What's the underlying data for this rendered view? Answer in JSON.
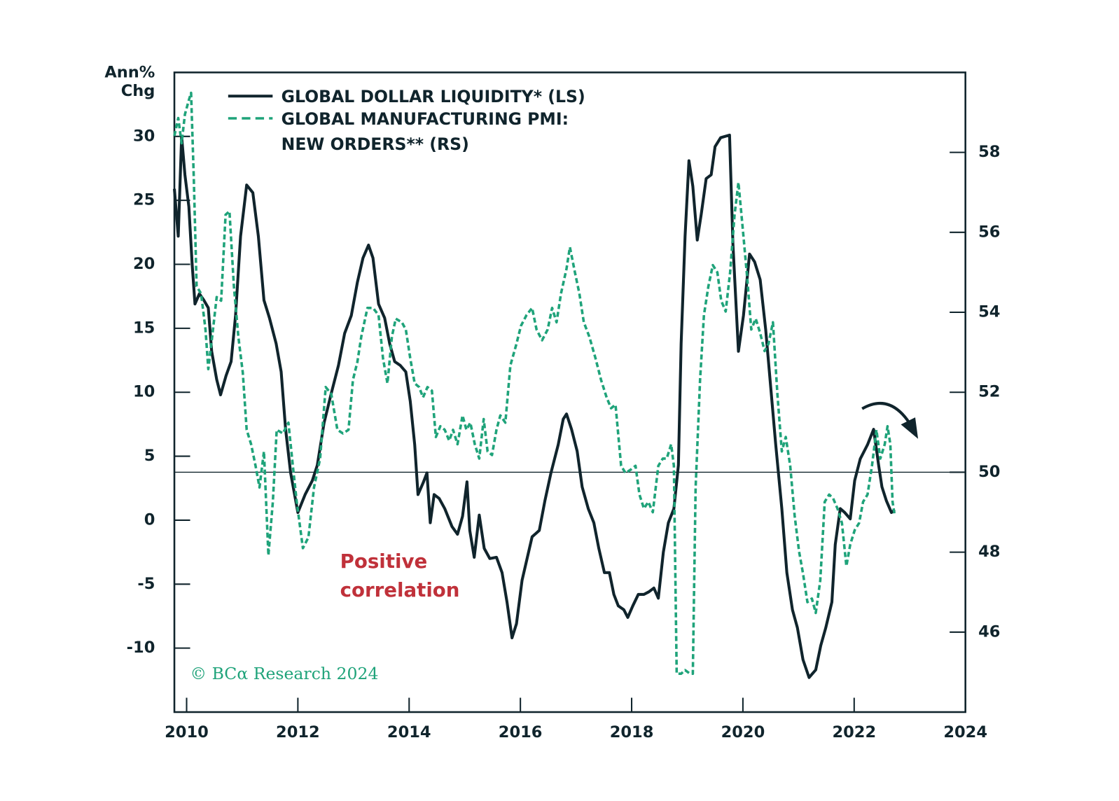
{
  "chart_data": {
    "type": "line",
    "y_label": "Ann%\nChg",
    "annotations": [
      "Positive\ncorrelation",
      "© BCα Research 2024"
    ],
    "xlim": [
      2009.78,
      2024
    ],
    "xticks": [
      2010,
      2012,
      2014,
      2016,
      2018,
      2020,
      2022,
      2024
    ],
    "ylim": [
      -15,
      35
    ],
    "yticks": [
      -10,
      -5,
      0,
      5,
      10,
      15,
      20,
      25,
      30
    ],
    "y2lim": [
      44,
      60
    ],
    "y2ticks": [
      46,
      48,
      50,
      52,
      54,
      56,
      58
    ],
    "hline_y2": 50,
    "legend": "upper left",
    "series": [
      {
        "name": "GLOBAL DOLLAR LIQUIDITY* (LS)",
        "color": "#10242c",
        "axis": "y",
        "line_style": "solid",
        "x": [
          2009.78,
          2009.85,
          2009.91,
          2009.97,
          2010.04,
          2010.1,
          2010.15,
          2010.23,
          2010.31,
          2010.39,
          2010.45,
          2010.54,
          2010.61,
          2010.71,
          2010.8,
          2010.88,
          2010.97,
          2011.08,
          2011.19,
          2011.29,
          2011.39,
          2011.49,
          2011.61,
          2011.7,
          2011.78,
          2011.87,
          2012.0,
          2012.13,
          2012.26,
          2012.35,
          2012.47,
          2012.6,
          2012.73,
          2012.84,
          2012.96,
          2013.07,
          2013.17,
          2013.27,
          2013.35,
          2013.45,
          2013.56,
          2013.65,
          2013.74,
          2013.84,
          2013.94,
          2014.02,
          2014.1,
          2014.16,
          2014.25,
          2014.32,
          2014.38,
          2014.45,
          2014.54,
          2014.64,
          2014.77,
          2014.87,
          2014.96,
          2015.04,
          2015.09,
          2015.17,
          2015.26,
          2015.35,
          2015.45,
          2015.57,
          2015.67,
          2015.76,
          2015.85,
          2015.93,
          2016.03,
          2016.12,
          2016.21,
          2016.34,
          2016.44,
          2016.55,
          2016.68,
          2016.77,
          2016.83,
          2016.92,
          2017.02,
          2017.11,
          2017.22,
          2017.32,
          2017.41,
          2017.51,
          2017.6,
          2017.68,
          2017.76,
          2017.86,
          2017.93,
          2018.02,
          2018.12,
          2018.22,
          2018.31,
          2018.4,
          2018.48,
          2018.57,
          2018.66,
          2018.76,
          2018.84,
          2018.89,
          2018.96,
          2019.03,
          2019.1,
          2019.18,
          2019.25,
          2019.34,
          2019.43,
          2019.5,
          2019.6,
          2019.76,
          2019.82,
          2019.92,
          2020.01,
          2020.12,
          2020.21,
          2020.31,
          2020.41,
          2020.5,
          2020.59,
          2020.7,
          2020.79,
          2020.89,
          2020.98,
          2021.08,
          2021.19,
          2021.31,
          2021.4,
          2021.49,
          2021.6,
          2021.66,
          2021.75,
          2021.83,
          2021.93,
          2022.01,
          2022.11,
          2022.24,
          2022.35,
          2022.44,
          2022.5,
          2022.58,
          2022.67,
          2022.73
        ],
        "values": [
          25.9,
          22.2,
          30,
          27,
          24.5,
          20,
          16.9,
          17.7,
          17.2,
          16.6,
          13.2,
          11,
          9.8,
          11.3,
          12.4,
          16,
          22.2,
          26.2,
          25.6,
          22.2,
          17.2,
          15.8,
          13.8,
          11.6,
          7.1,
          3.7,
          0.6,
          2,
          3.1,
          4.3,
          7.6,
          9.9,
          12.1,
          14.6,
          16,
          18.6,
          20.5,
          21.5,
          20.5,
          16.9,
          15.8,
          13.8,
          12.4,
          12.1,
          11.6,
          9.3,
          5.9,
          2,
          2.9,
          3.7,
          -0.2,
          2,
          1.7,
          0.9,
          -0.5,
          -1.1,
          0.3,
          3,
          -0.8,
          -2.9,
          0.4,
          -2.2,
          -3,
          -2.9,
          -4.1,
          -6.4,
          -9.2,
          -8.1,
          -4.7,
          -3,
          -1.3,
          -0.8,
          1.5,
          3.7,
          5.9,
          7.9,
          8.3,
          7.1,
          5.4,
          2.6,
          0.9,
          -0.2,
          -2.2,
          -4.1,
          -4.1,
          -5.8,
          -6.7,
          -7,
          -7.6,
          -6.7,
          -5.8,
          -5.8,
          -5.6,
          -5.3,
          -6.1,
          -2.5,
          -0.2,
          0.9,
          4.3,
          13.8,
          22.2,
          28.1,
          26.1,
          21.9,
          23.9,
          26.7,
          27,
          29.2,
          29.9,
          30.1,
          21.6,
          13.2,
          16,
          20.8,
          20.2,
          18.8,
          14.9,
          10.4,
          5.9,
          0.9,
          -4.1,
          -7,
          -8.4,
          -10.9,
          -12.3,
          -11.7,
          -9.8,
          -8.4,
          -6.4,
          -1.9,
          0.9,
          0.6,
          0.1,
          3.1,
          4.8,
          5.9,
          7.1,
          4.3,
          2.6,
          1.5,
          0.6,
          0.8
        ]
      },
      {
        "name": "GLOBAL MANUFACTURING PMI:\nNEW ORDERS** (RS)",
        "color": "#1fa37a",
        "axis": "y2",
        "line_style": "dashed",
        "x": [
          2009.78,
          2009.85,
          2009.91,
          2009.97,
          2010.04,
          2010.08,
          2010.13,
          2010.18,
          2010.26,
          2010.34,
          2010.39,
          2010.46,
          2010.54,
          2010.62,
          2010.7,
          2010.77,
          2010.85,
          2010.93,
          2011.01,
          2011.08,
          2011.16,
          2011.24,
          2011.31,
          2011.39,
          2011.47,
          2011.55,
          2011.62,
          2011.73,
          2011.83,
          2011.91,
          2011.98,
          2012.09,
          2012.19,
          2012.29,
          2012.4,
          2012.5,
          2012.6,
          2012.71,
          2012.81,
          2012.91,
          2012.99,
          2013.07,
          2013.14,
          2013.25,
          2013.35,
          2013.45,
          2013.53,
          2013.61,
          2013.69,
          2013.76,
          2013.87,
          2013.94,
          2014.02,
          2014.1,
          2014.18,
          2014.25,
          2014.33,
          2014.41,
          2014.48,
          2014.56,
          2014.64,
          2014.72,
          2014.79,
          2014.87,
          2014.96,
          2015.03,
          2015.1,
          2015.18,
          2015.26,
          2015.34,
          2015.41,
          2015.49,
          2015.57,
          2015.64,
          2015.73,
          2015.82,
          2015.93,
          2016.01,
          2016.11,
          2016.21,
          2016.29,
          2016.39,
          2016.49,
          2016.57,
          2016.65,
          2016.73,
          2016.83,
          2016.89,
          2016.98,
          2017.06,
          2017.14,
          2017.24,
          2017.35,
          2017.45,
          2017.55,
          2017.63,
          2017.71,
          2017.81,
          2017.89,
          2017.99,
          2018.07,
          2018.14,
          2018.22,
          2018.3,
          2018.38,
          2018.48,
          2018.56,
          2018.63,
          2018.71,
          2018.76,
          2018.81,
          2018.89,
          2018.96,
          2019.05,
          2019.1,
          2019.15,
          2019.23,
          2019.3,
          2019.38,
          2019.46,
          2019.54,
          2019.61,
          2019.69,
          2019.77,
          2019.85,
          2019.92,
          2020.0,
          2020.08,
          2020.15,
          2020.23,
          2020.31,
          2020.39,
          2020.46,
          2020.54,
          2020.62,
          2020.7,
          2020.77,
          2020.85,
          2020.93,
          2021.01,
          2021.08,
          2021.16,
          2021.24,
          2021.31,
          2021.39,
          2021.47,
          2021.55,
          2021.62,
          2021.7,
          2021.78,
          2021.86,
          2021.93,
          2022.01,
          2022.09,
          2022.16,
          2022.24,
          2022.32,
          2022.4,
          2022.47,
          2022.55,
          2022.6,
          2022.65,
          2022.69,
          2022.73
        ],
        "values": [
          58.41,
          58.86,
          58.23,
          58.95,
          59.31,
          59.49,
          57.34,
          54.65,
          54.47,
          53.57,
          52.58,
          53.39,
          54.38,
          54.29,
          56.44,
          56.53,
          54.65,
          53.39,
          52.49,
          51.06,
          50.7,
          50.16,
          49.62,
          50.52,
          47.92,
          49.26,
          51.06,
          50.97,
          51.24,
          50.16,
          49.26,
          48.1,
          48.37,
          49.62,
          50.34,
          52.13,
          51.96,
          51.06,
          50.97,
          51.06,
          52.31,
          52.76,
          53.39,
          54.11,
          54.11,
          53.93,
          52.85,
          52.22,
          53.39,
          53.84,
          53.75,
          53.57,
          52.85,
          52.22,
          52.13,
          51.87,
          52.13,
          52.04,
          50.88,
          51.15,
          51.06,
          50.79,
          51.06,
          50.7,
          51.42,
          51.06,
          51.24,
          50.7,
          50.34,
          51.33,
          50.52,
          50.43,
          51.06,
          51.42,
          51.24,
          52.67,
          53.21,
          53.66,
          53.93,
          54.11,
          53.57,
          53.3,
          53.57,
          54.11,
          53.75,
          54.47,
          55.09,
          55.63,
          55.0,
          54.47,
          53.75,
          53.39,
          52.85,
          52.31,
          51.87,
          51.6,
          51.69,
          50.16,
          49.98,
          50.07,
          50.16,
          49.44,
          49.09,
          49.26,
          49.0,
          50.16,
          50.34,
          50.34,
          50.7,
          50.16,
          44.96,
          44.96,
          45.05,
          44.96,
          44.96,
          49.62,
          52.31,
          53.93,
          54.65,
          55.18,
          55.0,
          54.29,
          54.02,
          55.0,
          56.44,
          57.25,
          56.06,
          54.83,
          53.57,
          53.84,
          53.48,
          53.03,
          53.21,
          53.75,
          51.96,
          50.52,
          50.88,
          50.16,
          48.91,
          48.01,
          47.47,
          46.75,
          46.84,
          46.48,
          47.29,
          49.26,
          49.44,
          49.35,
          49.09,
          48.73,
          47.65,
          48.19,
          48.55,
          48.73,
          49.26,
          49.44,
          50.16,
          51.06,
          50.34,
          50.7,
          51.15,
          50.7,
          49.26,
          48.91
        ]
      }
    ]
  }
}
